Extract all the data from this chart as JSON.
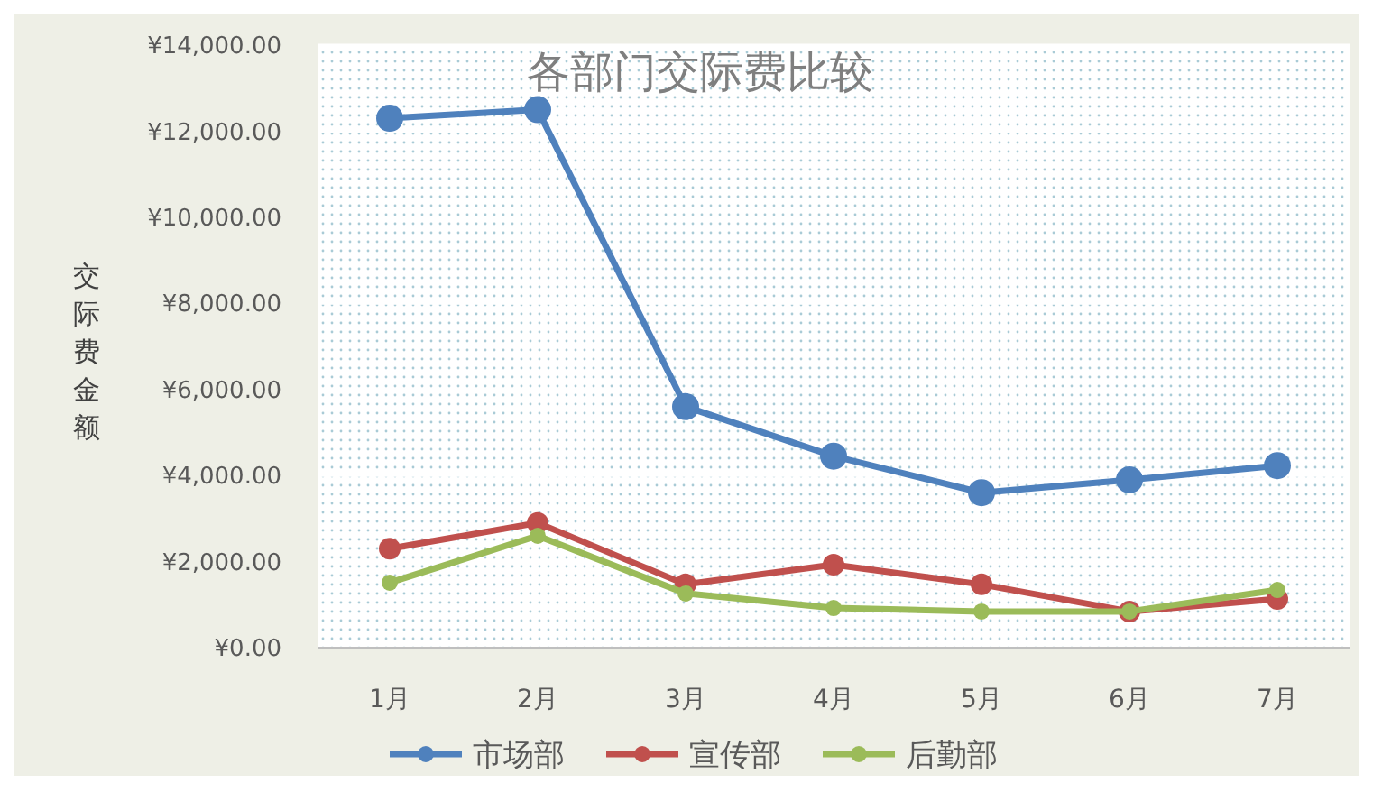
{
  "chart_data": {
    "type": "line",
    "title": "各部门交际费比较",
    "ylabel": "交际费金额",
    "categories": [
      "1月",
      "2月",
      "3月",
      "4月",
      "5月",
      "6月",
      "7月"
    ],
    "series": [
      {
        "name": "市场部",
        "color": "#4f81bd",
        "values": [
          12300,
          12500,
          5600,
          4450,
          3600,
          3900,
          4230
        ]
      },
      {
        "name": "宣传部",
        "color": "#c0504d",
        "values": [
          2300,
          2900,
          1470,
          1930,
          1470,
          840,
          1130
        ]
      },
      {
        "name": "后勤部",
        "color": "#9bbb59",
        "values": [
          1510,
          2600,
          1260,
          920,
          840,
          840,
          1340
        ]
      }
    ],
    "ylim": [
      0,
      14000
    ],
    "yticks": [
      {
        "value": 0,
        "label": "¥0.00"
      },
      {
        "value": 2000,
        "label": "¥2,000.00"
      },
      {
        "value": 4000,
        "label": "¥4,000.00"
      },
      {
        "value": 6000,
        "label": "¥6,000.00"
      },
      {
        "value": 8000,
        "label": "¥8,000.00"
      },
      {
        "value": 10000,
        "label": "¥10,000.00"
      },
      {
        "value": 12000,
        "label": "¥12,000.00"
      },
      {
        "value": 14000,
        "label": "¥14,000.00"
      }
    ],
    "grid": "y",
    "legend": "bottom",
    "marker": "circle",
    "line_style": "solid"
  }
}
